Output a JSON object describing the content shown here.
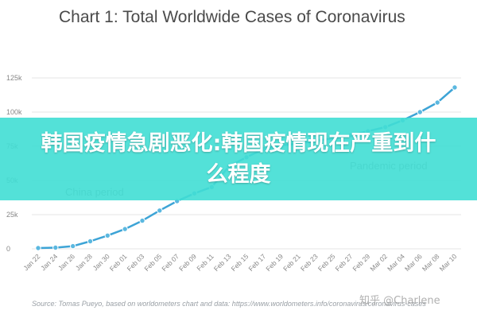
{
  "chart_data": {
    "type": "line",
    "title": "Chart 1: Total Worldwide Cases of Coronavirus",
    "xlabel": "",
    "ylabel": "",
    "categories": [
      "Jan 22",
      "Jan 24",
      "Jan 26",
      "Jan 28",
      "Jan 30",
      "Feb 01",
      "Feb 03",
      "Feb 05",
      "Feb 07",
      "Feb 09",
      "Feb 11",
      "Feb 13",
      "Feb 15",
      "Feb 17",
      "Feb 19",
      "Feb 21",
      "Feb 23",
      "Feb 25",
      "Feb 27",
      "Feb 29",
      "Mar 02",
      "Mar 04",
      "Mar 06",
      "Mar 08",
      "Mar 10"
    ],
    "series": [
      {
        "name": "",
        "values": [
          600,
          900,
          2000,
          5500,
          9700,
          14500,
          20600,
          28000,
          34900,
          40500,
          45200,
          60400,
          67000,
          73000,
          75600,
          77000,
          79000,
          80800,
          83000,
          86000,
          89000,
          94000,
          100000,
          107000,
          118000
        ]
      }
    ],
    "ylim": [
      0,
      125000
    ],
    "y_ticks": [
      "0",
      "25k",
      "50k",
      "75k",
      "100k",
      "125k"
    ],
    "grid": true,
    "annotations": [
      "China period",
      "Pandemic period"
    ],
    "colors": {
      "line": "#3da4d6",
      "marker": "#5bb8e0",
      "grid": "#e6e6e6",
      "axis_text": "#888888",
      "annotation": "#9a9a9a"
    }
  },
  "overlay": {
    "banner_text": "韩国疫情急剧恶化:韩国疫情现在严重到什么程度",
    "banner_color": "#40ded4"
  },
  "source_note": "Source: Tomas Pueyo, based on worldometers chart and data: https://www.worldometers.info/coronavirus/coronavirus-cases",
  "watermark": "知乎 @Charlene"
}
